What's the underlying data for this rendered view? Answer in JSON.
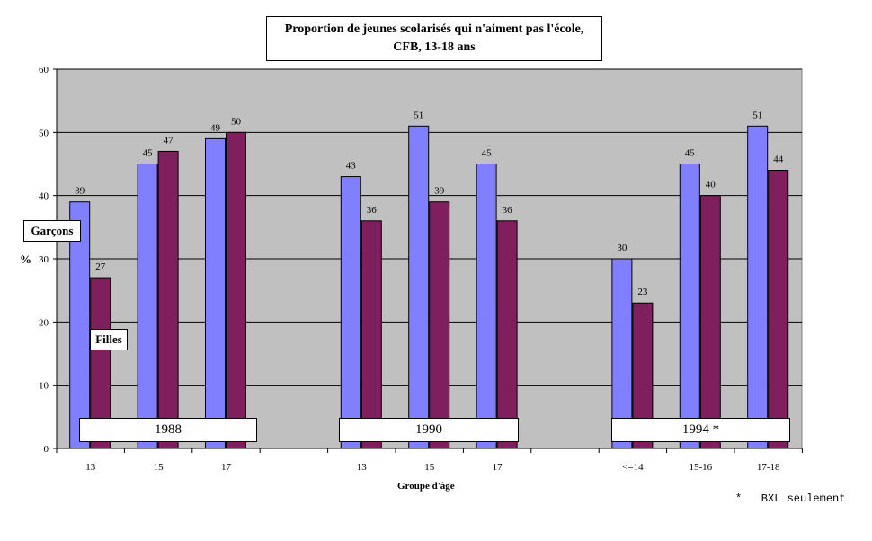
{
  "chart_data": {
    "type": "bar",
    "title_lines": [
      "Proportion de jeunes scolarisés qui n'aiment pas l'école,",
      "CFB, 13-18 ans"
    ],
    "xlabel": "Groupe d'âge",
    "ylabel": "%",
    "ylim": [
      0,
      60
    ],
    "yticks": [
      0,
      10,
      20,
      30,
      40,
      50,
      60
    ],
    "grid": true,
    "categories": [
      "13",
      "15",
      "17",
      "13",
      "15",
      "17",
      "<=14",
      "15-16",
      "17-18"
    ],
    "periods": [
      {
        "label": "1988",
        "categories": [
          0,
          1,
          2
        ]
      },
      {
        "label": "1990",
        "categories": [
          3,
          4,
          5
        ]
      },
      {
        "label": "1994 *",
        "categories": [
          6,
          7,
          8
        ]
      }
    ],
    "series": [
      {
        "name": "Garçons",
        "color": "#8080ff",
        "values": [
          39,
          45,
          49,
          43,
          51,
          45,
          30,
          45,
          51
        ]
      },
      {
        "name": "Filles",
        "color": "#7f1f5e",
        "values": [
          27,
          47,
          50,
          36,
          39,
          36,
          23,
          40,
          44
        ]
      }
    ],
    "footnote": "*   BXL seulement"
  }
}
